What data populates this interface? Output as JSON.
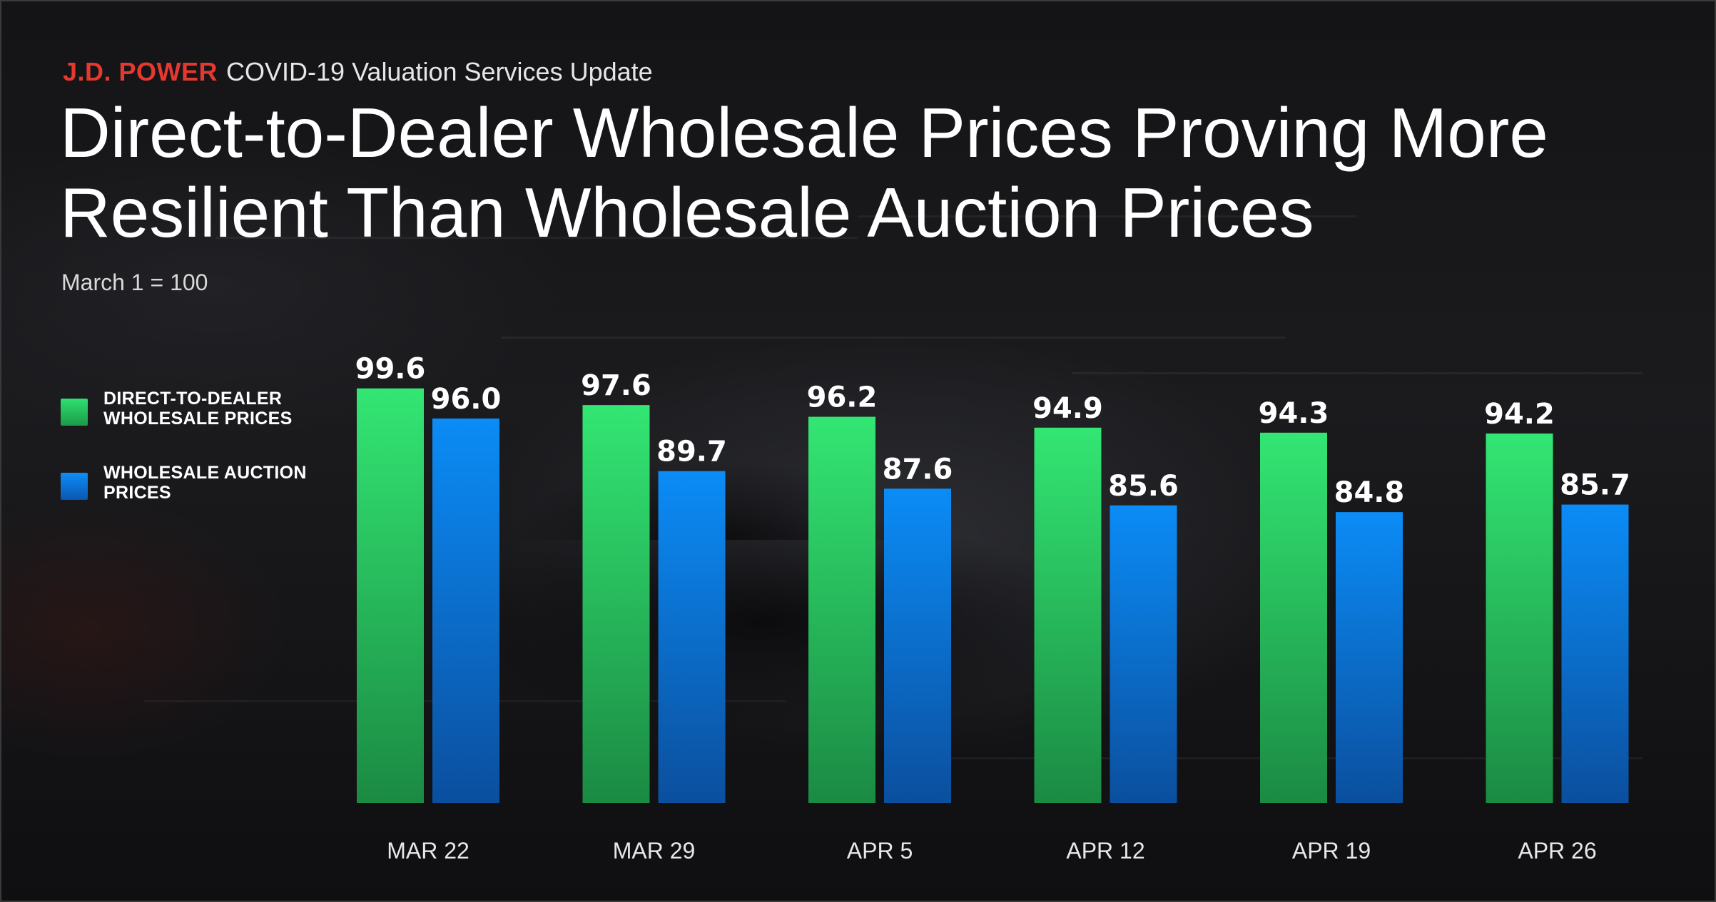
{
  "header": {
    "brand": "J.D. POWER",
    "update": "COVID-19 Valuation Services Update"
  },
  "chart_data": {
    "type": "bar",
    "title": "Direct-to-Dealer Wholesale Prices Proving More Resilient Than Wholesale Auction Prices",
    "subtitle": "March 1 = 100",
    "categories": [
      "MAR 22",
      "MAR 29",
      "APR 5",
      "APR 12",
      "APR 19",
      "APR 26"
    ],
    "series": [
      {
        "name": "DIRECT-TO-DEALER WHOLESALE PRICES",
        "values": [
          99.6,
          97.6,
          96.2,
          94.9,
          94.3,
          94.2
        ],
        "labels": [
          "99.6",
          "97.6",
          "96.2",
          "94.9",
          "94.3",
          "94.2"
        ],
        "color": "#2fd566"
      },
      {
        "name": "WHOLESALE AUCTION PRICES",
        "values": [
          96.0,
          89.7,
          87.6,
          85.6,
          84.8,
          85.7
        ],
        "labels": [
          "96.0",
          "89.7",
          "87.6",
          "85.6",
          "84.8",
          "85.7"
        ],
        "color": "#0a86f0"
      }
    ],
    "xlabel": "",
    "ylabel": "",
    "ylim": [
      50,
      100
    ],
    "grid": false,
    "legend": "left"
  }
}
